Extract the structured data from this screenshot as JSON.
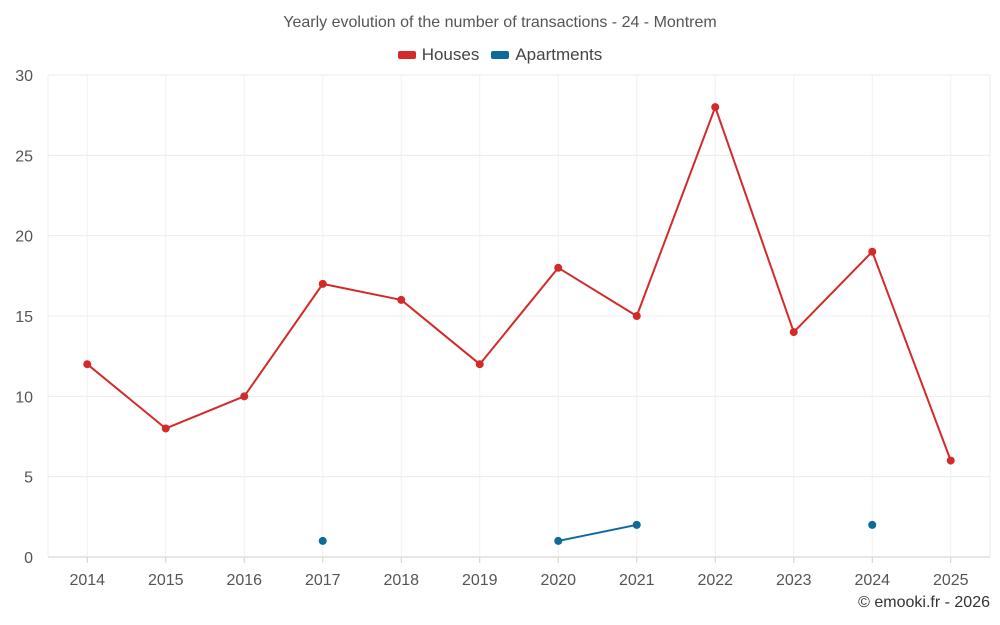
{
  "chart_data": {
    "type": "line",
    "title": "Yearly evolution of the number of transactions - 24 - Montrem",
    "categories": [
      "2014",
      "2015",
      "2016",
      "2017",
      "2018",
      "2019",
      "2020",
      "2021",
      "2022",
      "2023",
      "2024",
      "2025"
    ],
    "series": [
      {
        "name": "Houses",
        "color": "#d42a2a",
        "values": [
          12,
          8,
          10,
          17,
          16,
          12,
          18,
          15,
          28,
          14,
          19,
          6
        ]
      },
      {
        "name": "Apartments",
        "color": "#0f6a9c",
        "values": [
          null,
          null,
          null,
          1,
          null,
          null,
          1,
          2,
          null,
          null,
          2,
          null
        ]
      }
    ],
    "ylim": [
      0,
      30
    ],
    "yticks": [
      0,
      5,
      10,
      15,
      20,
      25,
      30
    ],
    "xlabel": "",
    "ylabel": "",
    "grid": true,
    "legend_position": "top-center"
  },
  "credit": "© emooki.fr - 2026"
}
